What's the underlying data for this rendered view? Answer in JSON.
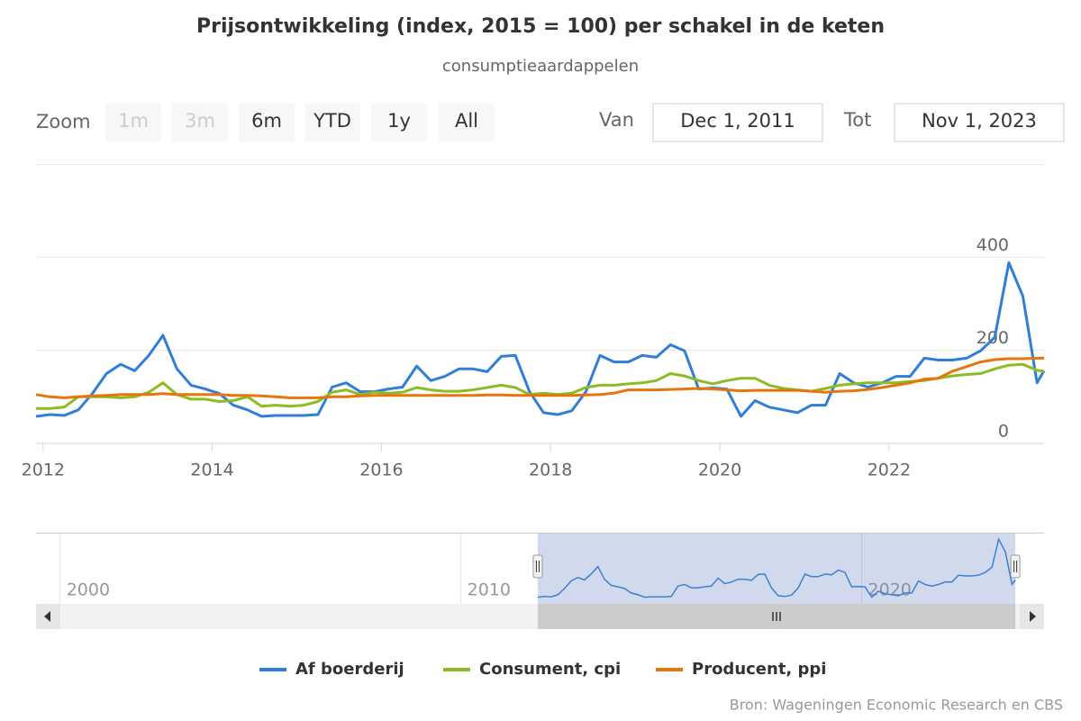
{
  "range_selector": {
    "zoom_label": "Zoom",
    "buttons": [
      "1m",
      "3m",
      "6m",
      "YTD",
      "1y",
      "All"
    ],
    "disabled_buttons": [
      0,
      1
    ],
    "from_label": "Van",
    "from": "Dec 1, 2011",
    "to_label": "Tot",
    "to": "Nov 1, 2023"
  },
  "chart_data": {
    "type": "line",
    "title": "Prijsontwikkeling (index, 2015 = 100) per schakel in de keten",
    "subtitle": "consumptieaardappelen",
    "x": [
      2011.917,
      2012.083,
      2012.25,
      2012.417,
      2012.583,
      2012.75,
      2012.917,
      2013.083,
      2013.25,
      2013.417,
      2013.583,
      2013.75,
      2013.917,
      2014.083,
      2014.25,
      2014.417,
      2014.583,
      2014.75,
      2014.917,
      2015.083,
      2015.25,
      2015.417,
      2015.583,
      2015.75,
      2015.917,
      2016.083,
      2016.25,
      2016.417,
      2016.583,
      2016.75,
      2016.917,
      2017.083,
      2017.25,
      2017.417,
      2017.583,
      2017.75,
      2017.917,
      2018.083,
      2018.25,
      2018.417,
      2018.583,
      2018.75,
      2018.917,
      2019.083,
      2019.25,
      2019.417,
      2019.583,
      2019.75,
      2019.917,
      2020.083,
      2020.25,
      2020.417,
      2020.583,
      2020.75,
      2020.917,
      2021.083,
      2021.25,
      2021.417,
      2021.583,
      2021.75,
      2021.917,
      2022.083,
      2022.25,
      2022.417,
      2022.583,
      2022.75,
      2022.917,
      2023.083,
      2023.25,
      2023.417,
      2023.583,
      2023.75,
      2023.833
    ],
    "series": [
      {
        "name": "Af boerderij",
        "color": "#2f7ed8",
        "values": [
          58,
          62,
          60,
          72,
          107,
          150,
          170,
          156,
          189,
          232,
          160,
          125,
          117,
          107,
          82,
          72,
          58,
          60,
          60,
          60,
          62,
          121,
          130,
          111,
          111,
          117,
          121,
          166,
          135,
          144,
          160,
          160,
          154,
          187,
          189,
          111,
          66,
          62,
          70,
          111,
          189,
          175,
          175,
          189,
          185,
          212,
          199,
          117,
          119,
          117,
          58,
          92,
          78,
          72,
          66,
          82,
          82,
          150,
          130,
          121,
          130,
          144,
          144,
          183,
          179,
          179,
          183,
          199,
          228,
          388,
          316,
          130,
          156
        ]
      },
      {
        "name": "Consument, cpi",
        "color": "#8bbc21",
        "values": [
          75,
          75,
          78,
          100,
          100,
          100,
          98,
          100,
          110,
          130,
          105,
          95,
          95,
          90,
          92,
          100,
          80,
          82,
          80,
          82,
          90,
          110,
          115,
          105,
          110,
          108,
          110,
          120,
          115,
          112,
          112,
          115,
          120,
          125,
          120,
          105,
          108,
          105,
          108,
          120,
          125,
          125,
          128,
          130,
          135,
          150,
          145,
          135,
          128,
          135,
          140,
          140,
          125,
          118,
          115,
          112,
          118,
          125,
          128,
          130,
          130,
          130,
          133,
          135,
          140,
          145,
          148,
          150,
          160,
          168,
          170,
          157,
          155
        ]
      },
      {
        "name": "Producent, ppi",
        "color": "#e8740c",
        "values": [
          105,
          100,
          98,
          100,
          102,
          103,
          105,
          105,
          105,
          107,
          105,
          105,
          105,
          105,
          103,
          103,
          102,
          100,
          98,
          98,
          98,
          100,
          100,
          102,
          103,
          103,
          103,
          103,
          103,
          103,
          103,
          103,
          104,
          104,
          103,
          103,
          103,
          103,
          103,
          104,
          105,
          108,
          115,
          115,
          115,
          116,
          117,
          118,
          117,
          115,
          113,
          114,
          114,
          114,
          114,
          112,
          110,
          112,
          113,
          116,
          120,
          125,
          130,
          138,
          140,
          155,
          165,
          175,
          180,
          182,
          182,
          183,
          183
        ]
      }
    ],
    "xlim": [
      2011.917,
      2023.833
    ],
    "xticks": [
      2012,
      2014,
      2016,
      2018,
      2020,
      2022
    ],
    "ylim": [
      0,
      600
    ],
    "yticks": [
      0,
      200,
      400
    ],
    "grid": true,
    "legend": "bottom",
    "navigator": {
      "xlim": [
        1999.4,
        2024.55
      ],
      "ylim": [
        20,
        420
      ],
      "xticks": [
        2000,
        2010,
        2020
      ]
    },
    "credits": "Bron: Wageningen Economic Research en CBS"
  }
}
